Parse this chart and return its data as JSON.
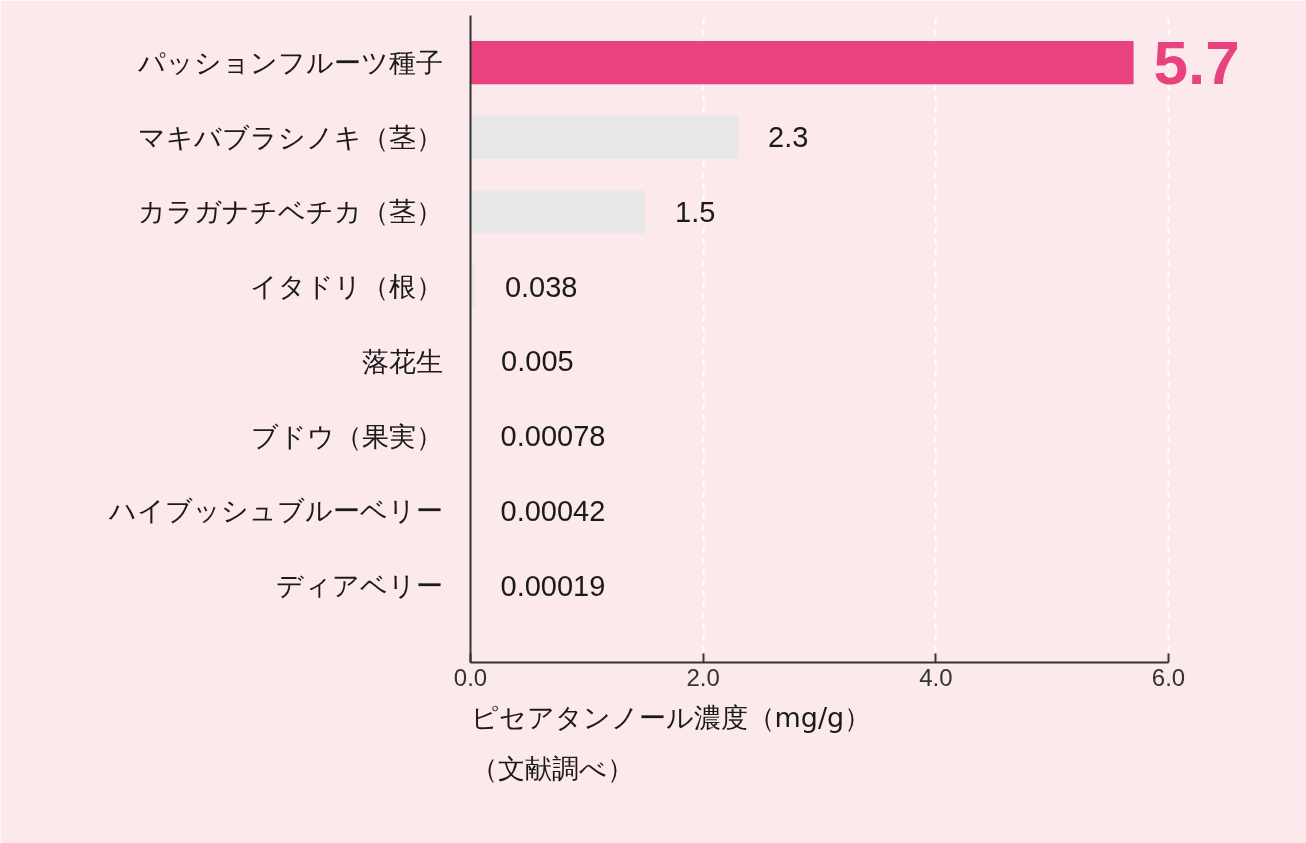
{
  "chart_data": {
    "type": "bar",
    "orientation": "horizontal",
    "categories": [
      "パッションフルーツ種子",
      "マキバブラシノキ（茎）",
      "カラガナチベチカ（茎）",
      "イタドリ（根）",
      "落花生",
      "ブドウ（果実）",
      "ハイブッシュブルーベリー",
      "ディアベリー"
    ],
    "values": [
      5.7,
      2.3,
      1.5,
      0.038,
      0.005,
      0.00078,
      0.00042,
      0.00019
    ],
    "colors": [
      "#e8437f",
      "#e8e8e8",
      "#e8e8e8",
      "#e8e8e8",
      "#e8e8e8",
      "#e8e8e8",
      "#e8e8e8",
      "#e8e8e8"
    ],
    "xlim": [
      0,
      6
    ],
    "xticks": [
      {
        "value": 0,
        "label": "0.0"
      },
      {
        "value": 2,
        "label": "2.0"
      },
      {
        "value": 4,
        "label": "4.0"
      },
      {
        "value": 6,
        "label": "6.0"
      }
    ],
    "xlabel": "ピセアタンノール濃度（mg/g）",
    "annotations": [
      "（文献調べ）"
    ],
    "data_labels": true,
    "grid": "x"
  }
}
